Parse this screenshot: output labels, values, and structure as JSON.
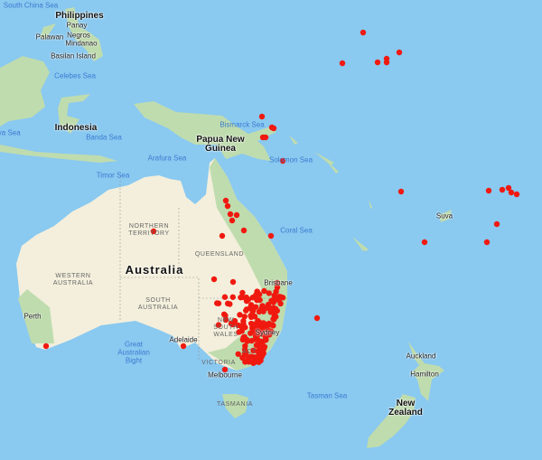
{
  "map": {
    "countries": [
      "Philippines",
      "Indonesia",
      "Papua New Guinea",
      "Australia",
      "New Zealand"
    ],
    "seas": [
      "South China Sea",
      "Celebes Sea",
      "Java Sea",
      "Banda Sea",
      "Arafura Sea",
      "Timor Sea",
      "Bismarck Sea",
      "Solomon Sea",
      "Coral Sea",
      "Great Australian Bight",
      "Tasman Sea"
    ],
    "states": [
      "NORTHERN TERRITORY",
      "QUEENSLAND",
      "WESTERN AUSTRALIA",
      "SOUTH AUSTRALIA",
      "NEW SOUTH WALES",
      "VICTORIA",
      "TASMANIA",
      "ACT"
    ],
    "places": [
      "Panay",
      "Palawan",
      "Negros",
      "Mindanao",
      "Basilan Island",
      "Perth",
      "Adelaide",
      "Melbourne",
      "Sydney",
      "Brisbane",
      "Suva",
      "Auckland",
      "Hamilton"
    ],
    "colors": {
      "water": "#8ac9f0",
      "land": "#f3efdc",
      "vegetation": "#bfe0b0",
      "marker": "#f0190f"
    },
    "marker_icon": "occurrence-dot"
  }
}
